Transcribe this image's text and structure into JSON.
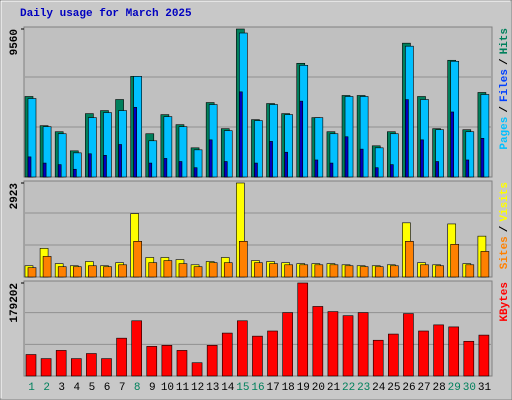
{
  "chart_data": [
    {
      "type": "bar",
      "title": "Daily usage for March 2025",
      "title_color": "#0000c0",
      "ylim": [
        0,
        9560
      ],
      "yticks": [
        9560
      ],
      "legend_separator": "/",
      "series": [
        {
          "name": "Hits",
          "color": "#00805c",
          "values": [
            5200,
            3315,
            2925,
            1690,
            4095,
            4290,
            5005,
            6500,
            2795,
            4030,
            3380,
            1885,
            4810,
            3120,
            9560,
            3705,
            4745,
            4095,
            7345,
            3835,
            2925,
            5265,
            5265,
            2015,
            2925,
            8645,
            5200,
            3120,
            7540,
            3055,
            5460
          ]
        },
        {
          "name": "Files",
          "color": "#0040ff",
          "bar_color": "#00c0ff",
          "values": [
            5070,
            3250,
            2795,
            1560,
            3835,
            4160,
            4290,
            6500,
            2340,
            3900,
            3250,
            1755,
            4680,
            2990,
            9300,
            3640,
            4680,
            4030,
            7215,
            3835,
            2795,
            5200,
            5200,
            1885,
            2795,
            8450,
            5005,
            3055,
            7475,
            2925,
            5330
          ]
        },
        {
          "name": "Pages",
          "color": "#00c0ff",
          "bar_color": "#0000c0",
          "values": [
            1300,
            900,
            800,
            500,
            1500,
            1400,
            2100,
            4500,
            900,
            1200,
            1000,
            600,
            2400,
            1000,
            5500,
            900,
            2300,
            1600,
            4900,
            1100,
            900,
            2600,
            1800,
            600,
            800,
            5000,
            2400,
            1000,
            4200,
            1100,
            2500
          ]
        }
      ]
    },
    {
      "type": "bar",
      "ylim": [
        0,
        2923
      ],
      "yticks": [
        2923
      ],
      "legend_separator": "/",
      "series": [
        {
          "name": "Visits",
          "color": "#ffff00",
          "values": [
            350,
            890,
            415,
            350,
            480,
            350,
            445,
            1970,
            605,
            605,
            540,
            380,
            480,
            605,
            2923,
            510,
            480,
            445,
            415,
            415,
            415,
            380,
            350,
            350,
            380,
            1685,
            445,
            380,
            1650,
            415,
            1270
          ]
        },
        {
          "name": "Sites",
          "color": "#ff8000",
          "values": [
            290,
            640,
            320,
            320,
            350,
            320,
            380,
            1110,
            445,
            510,
            415,
            320,
            445,
            445,
            1110,
            445,
            415,
            380,
            380,
            380,
            380,
            350,
            320,
            320,
            350,
            1110,
            380,
            350,
            1015,
            380,
            795
          ]
        }
      ]
    },
    {
      "type": "bar",
      "ylim": [
        0,
        179202
      ],
      "yticks": [
        179202
      ],
      "categories": [
        "1",
        "2",
        "3",
        "4",
        "5",
        "6",
        "7",
        "8",
        "9",
        "10",
        "11",
        "12",
        "13",
        "14",
        "15",
        "16",
        "17",
        "18",
        "19",
        "20",
        "21",
        "22",
        "23",
        "24",
        "25",
        "26",
        "27",
        "28",
        "29",
        "30",
        "31"
      ],
      "category_colors": [
        "#00805c",
        "#00805c",
        "#000000",
        "#000000",
        "#000000",
        "#000000",
        "#000000",
        "#00805c",
        "#000000",
        "#000000",
        "#000000",
        "#000000",
        "#000000",
        "#000000",
        "#00805c",
        "#00805c",
        "#000000",
        "#000000",
        "#000000",
        "#000000",
        "#000000",
        "#00805c",
        "#00805c",
        "#000000",
        "#000000",
        "#000000",
        "#000000",
        "#000000",
        "#00805c",
        "#00805c",
        "#000000"
      ],
      "series": [
        {
          "name": "KBytes",
          "color": "#ff0000",
          "values": [
            41400,
            33500,
            49300,
            33500,
            43300,
            33500,
            72900,
            106400,
            57100,
            59100,
            49300,
            25600,
            59100,
            82700,
            106400,
            76800,
            86700,
            122200,
            179202,
            134000,
            124100,
            116200,
            122200,
            68900,
            80800,
            120200,
            86700,
            98500,
            94600,
            66900,
            78800
          ]
        }
      ]
    }
  ]
}
